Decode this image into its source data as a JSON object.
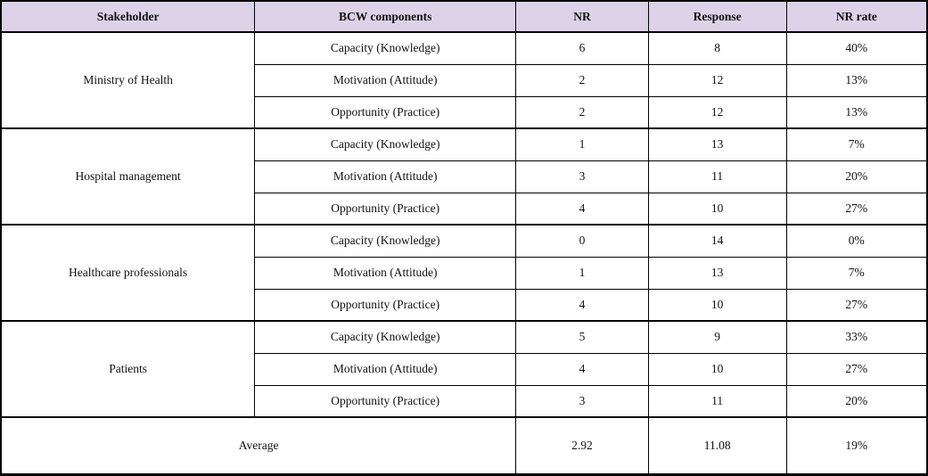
{
  "table": {
    "columns": [
      "Stakeholder",
      "BCW components",
      "NR",
      "Response",
      "NR rate"
    ],
    "header_bg": "#ddd3e8",
    "border_color": "#000000",
    "groups": [
      {
        "stakeholder": "Ministry of Health",
        "rows": [
          {
            "component": "Capacity (Knowledge)",
            "nr": "6",
            "response": "8",
            "nr_rate": "40%"
          },
          {
            "component": "Motivation (Attitude)",
            "nr": "2",
            "response": "12",
            "nr_rate": "13%"
          },
          {
            "component": "Opportunity (Practice)",
            "nr": "2",
            "response": "12",
            "nr_rate": "13%"
          }
        ]
      },
      {
        "stakeholder": "Hospital management",
        "rows": [
          {
            "component": "Capacity (Knowledge)",
            "nr": "1",
            "response": "13",
            "nr_rate": "7%"
          },
          {
            "component": "Motivation (Attitude)",
            "nr": "3",
            "response": "11",
            "nr_rate": "20%"
          },
          {
            "component": "Opportunity (Practice)",
            "nr": "4",
            "response": "10",
            "nr_rate": "27%"
          }
        ]
      },
      {
        "stakeholder": "Healthcare professionals",
        "rows": [
          {
            "component": "Capacity (Knowledge)",
            "nr": "0",
            "response": "14",
            "nr_rate": "0%"
          },
          {
            "component": "Motivation (Attitude)",
            "nr": "1",
            "response": "13",
            "nr_rate": "7%"
          },
          {
            "component": "Opportunity (Practice)",
            "nr": "4",
            "response": "10",
            "nr_rate": "27%"
          }
        ]
      },
      {
        "stakeholder": "Patients",
        "rows": [
          {
            "component": "Capacity (Knowledge)",
            "nr": "5",
            "response": "9",
            "nr_rate": "33%"
          },
          {
            "component": "Motivation (Attitude)",
            "nr": "4",
            "response": "10",
            "nr_rate": "27%"
          },
          {
            "component": "Opportunity (Practice)",
            "nr": "3",
            "response": "11",
            "nr_rate": "20%"
          }
        ]
      }
    ],
    "footer": {
      "label": "Average",
      "nr": "2.92",
      "response": "11.08",
      "nr_rate": "19%"
    }
  }
}
